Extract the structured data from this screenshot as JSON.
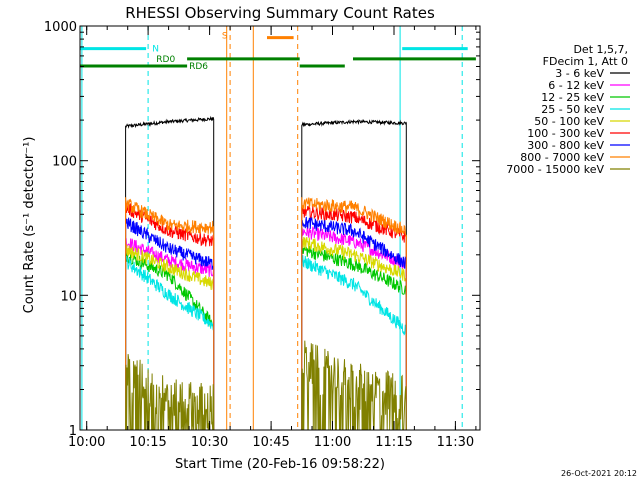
{
  "chart_data": {
    "type": "line",
    "title": "RHESSI Observing Summary Count Rates",
    "xlabel": "Start Time (20-Feb-16 09:58:22)",
    "ylabel": "Count Rate (s⁻¹ detector⁻¹)",
    "y_log": true,
    "ylim": [
      1,
      1000
    ],
    "xlim": [
      "09:58:22",
      "11:36:00"
    ],
    "x_ticks": [
      "10:00",
      "10:15",
      "10:30",
      "10:45",
      "11:00",
      "11:15",
      "11:30"
    ],
    "y_ticks": [
      {
        "value": 1,
        "label": "1"
      },
      {
        "value": 10,
        "label": "10"
      },
      {
        "value": 100,
        "label": "100"
      },
      {
        "value": 1000,
        "label": "1000"
      }
    ],
    "legend_header": [
      "Det 1,5,7,",
      "FDecim 1, Att 0"
    ],
    "legend_position": "right",
    "timestamp": "26-Oct-2021 20:12",
    "flags": [
      {
        "name": "N",
        "color": "#00e5e5",
        "level": 680,
        "segments": [
          [
            "09:58:30",
            "10:14:30"
          ],
          [
            "11:17:00",
            "11:33:00"
          ]
        ],
        "label_at": "10:16:00"
      },
      {
        "name": "S",
        "color": "#ff8000",
        "level": 820,
        "segments": [
          [
            "10:44:00",
            "10:50:30"
          ]
        ],
        "label_at": "10:33:00",
        "label_level": 850
      },
      {
        "name": "RD0",
        "color": "#008000",
        "level": 570,
        "segments": [
          [
            "10:24:30",
            "10:52:00"
          ],
          [
            "11:05:00",
            "11:35:00"
          ]
        ],
        "label_at": "10:17:00"
      },
      {
        "name": "RD6",
        "color": "#008000",
        "level": 505,
        "segments": [
          [
            "09:58:30",
            "10:24:30"
          ],
          [
            "10:52:00",
            "11:03:00"
          ]
        ],
        "label_at": "10:25:00"
      }
    ],
    "markers": [
      {
        "time": "09:58:50",
        "color": "#00e5e5",
        "style": "solid"
      },
      {
        "time": "10:15:00",
        "color": "#00e5e5",
        "style": "dashed"
      },
      {
        "time": "11:16:30",
        "color": "#00e5e5",
        "style": "solid"
      },
      {
        "time": "11:31:40",
        "color": "#00e5e5",
        "style": "dashed"
      },
      {
        "time": "10:34:10",
        "color": "#ff8000",
        "style": "solid"
      },
      {
        "time": "10:35:00",
        "color": "#ff8000",
        "style": "dashed"
      },
      {
        "time": "10:40:40",
        "color": "#ff8000",
        "style": "solid"
      },
      {
        "time": "10:51:30",
        "color": "#ff8000",
        "style": "dashed"
      }
    ],
    "segments": [
      [
        "10:09:30",
        "10:31:00"
      ],
      [
        "10:52:30",
        "11:18:00"
      ]
    ],
    "series": [
      {
        "name": "3 - 6 keV",
        "color": "#000000",
        "values": [
          [
            180,
            195,
            205
          ],
          [
            185,
            195,
            190
          ]
        ]
      },
      {
        "name": "6 - 12 keV",
        "color": "#ff00ff",
        "values": [
          [
            25,
            18,
            15
          ],
          [
            30,
            25,
            17
          ]
        ]
      },
      {
        "name": "12 - 25 keV",
        "color": "#00c800",
        "values": [
          [
            20,
            14,
            6
          ],
          [
            22,
            17,
            11
          ]
        ]
      },
      {
        "name": "25 - 50 keV",
        "color": "#00e5e5",
        "values": [
          [
            18,
            10,
            6
          ],
          [
            18,
            12,
            5.5
          ]
        ]
      },
      {
        "name": "50 - 100 keV",
        "color": "#d8d800",
        "values": [
          [
            22,
            16,
            12
          ],
          [
            25,
            20,
            14
          ]
        ]
      },
      {
        "name": "100 - 300 keV",
        "color": "#ff0000",
        "values": [
          [
            45,
            30,
            25
          ],
          [
            42,
            38,
            27
          ]
        ]
      },
      {
        "name": "300 - 800 keV",
        "color": "#0000ff",
        "values": [
          [
            35,
            22,
            17
          ],
          [
            35,
            30,
            17
          ]
        ]
      },
      {
        "name": "800 - 7000 keV",
        "color": "#ff8000",
        "values": [
          [
            48,
            33,
            32
          ],
          [
            48,
            45,
            30
          ]
        ]
      },
      {
        "name": "7000 - 15000 keV",
        "color": "#808000",
        "values": [
          [
            2.5,
            1.5,
            1.4
          ],
          [
            3,
            2,
            1.6
          ]
        ]
      }
    ]
  }
}
